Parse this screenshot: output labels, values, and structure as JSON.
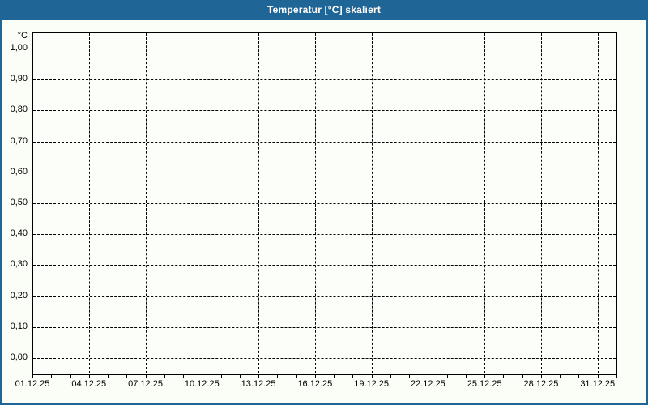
{
  "window": {
    "title": "Temperatur [°C] skaliert"
  },
  "colors": {
    "titlebar_bg": "#1f6596",
    "frame_border": "#1f6596",
    "titlebar_text": "#ffffff",
    "background": "#fbfdf7",
    "plot_background": "#fcfef9",
    "grid_line": "#000000",
    "axis_line": "#000000",
    "label_text": "#000000"
  },
  "chart_data": {
    "type": "line",
    "title": "Temperatur [°C] skaliert",
    "ylabel": "°C",
    "xlabel": "",
    "grid": true,
    "grid_style": "dashed",
    "y_ticks": [
      {
        "label": "1,00",
        "value": 1.0
      },
      {
        "label": "0,90",
        "value": 0.9
      },
      {
        "label": "0,80",
        "value": 0.8
      },
      {
        "label": "0,70",
        "value": 0.7
      },
      {
        "label": "0,60",
        "value": 0.6
      },
      {
        "label": "0,50",
        "value": 0.5
      },
      {
        "label": "0,40",
        "value": 0.4
      },
      {
        "label": "0,30",
        "value": 0.3
      },
      {
        "label": "0,20",
        "value": 0.2
      },
      {
        "label": "0,10",
        "value": 0.1
      },
      {
        "label": "0,00",
        "value": 0.0
      }
    ],
    "ylim": [
      0.0,
      1.0
    ],
    "x_ticks": [
      {
        "label": "01.12.25",
        "day": 0
      },
      {
        "label": "04.12.25",
        "day": 3
      },
      {
        "label": "07.12.25",
        "day": 6
      },
      {
        "label": "10.12.25",
        "day": 9
      },
      {
        "label": "13.12.25",
        "day": 12
      },
      {
        "label": "16.12.25",
        "day": 15
      },
      {
        "label": "19.12.25",
        "day": 18
      },
      {
        "label": "22.12.25",
        "day": 21
      },
      {
        "label": "25.12.25",
        "day": 24
      },
      {
        "label": "28.12.25",
        "day": 27
      },
      {
        "label": "31.12.25",
        "day": 30
      }
    ],
    "x_minor_tick_every_days": 1,
    "xlim_days": [
      0,
      31
    ],
    "series": []
  }
}
